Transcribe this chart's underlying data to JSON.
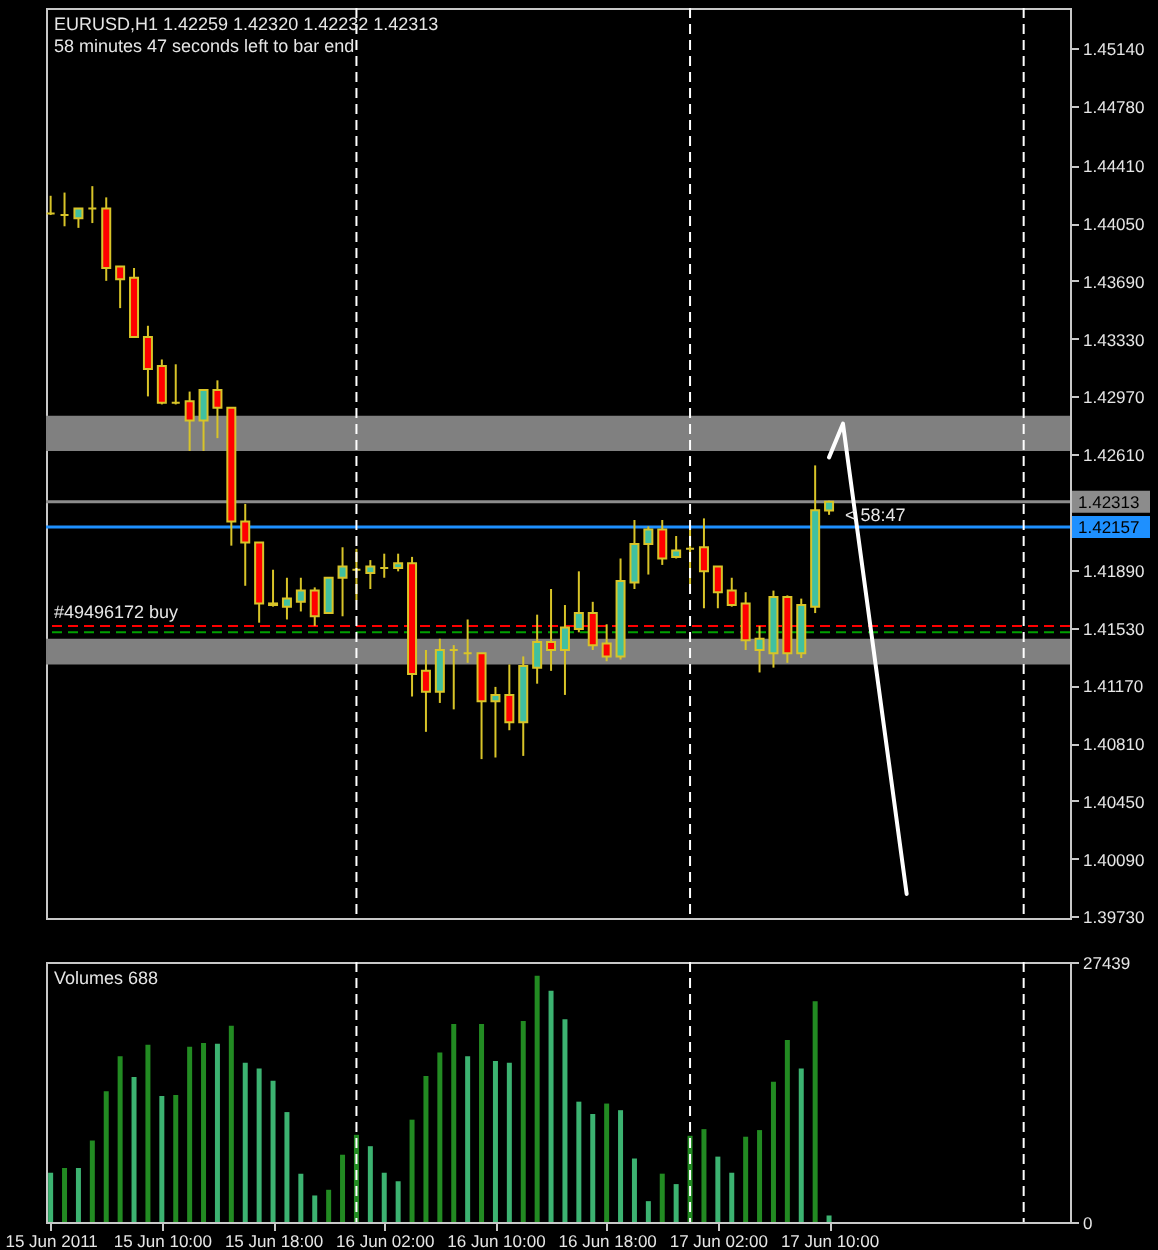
{
  "chart_data": [
    {
      "type": "candlestick",
      "title": "EURUSD,H1 1.42259 1.42320 1.42232 1.42313",
      "subtitle": "58 minutes 47 seconds left to bar end",
      "annotations": [
        {
          "text": "< 58:47",
          "x": "2011-06-17T11:00",
          "y": 1.4223
        }
      ],
      "x": [
        "2011-06-15T02:00",
        "2011-06-15T03:00",
        "2011-06-15T04:00",
        "2011-06-15T05:00",
        "2011-06-15T06:00",
        "2011-06-15T07:00",
        "2011-06-15T08:00",
        "2011-06-15T09:00",
        "2011-06-15T10:00",
        "2011-06-15T11:00",
        "2011-06-15T12:00",
        "2011-06-15T13:00",
        "2011-06-15T14:00",
        "2011-06-15T15:00",
        "2011-06-15T16:00",
        "2011-06-15T17:00",
        "2011-06-15T18:00",
        "2011-06-15T19:00",
        "2011-06-15T20:00",
        "2011-06-15T21:00",
        "2011-06-15T22:00",
        "2011-06-15T23:00",
        "2011-06-16T00:00",
        "2011-06-16T01:00",
        "2011-06-16T02:00",
        "2011-06-16T03:00",
        "2011-06-16T04:00",
        "2011-06-16T05:00",
        "2011-06-16T06:00",
        "2011-06-16T07:00",
        "2011-06-16T08:00",
        "2011-06-16T09:00",
        "2011-06-16T10:00",
        "2011-06-16T11:00",
        "2011-06-16T12:00",
        "2011-06-16T13:00",
        "2011-06-16T14:00",
        "2011-06-16T15:00",
        "2011-06-16T16:00",
        "2011-06-16T17:00",
        "2011-06-16T18:00",
        "2011-06-16T19:00",
        "2011-06-16T20:00",
        "2011-06-16T21:00",
        "2011-06-16T22:00",
        "2011-06-16T23:00",
        "2011-06-17T00:00",
        "2011-06-17T01:00",
        "2011-06-17T02:00",
        "2011-06-17T03:00",
        "2011-06-17T04:00",
        "2011-06-17T05:00",
        "2011-06-17T06:00",
        "2011-06-17T07:00",
        "2011-06-17T08:00",
        "2011-06-17T09:00",
        "2011-06-17T10:00"
      ],
      "ohlc": [
        [
          1.4411,
          1.4422,
          1.441,
          1.4411
        ],
        [
          1.441,
          1.4424,
          1.4403,
          1.441
        ],
        [
          1.4408,
          1.4414,
          1.4402,
          1.4414
        ],
        [
          1.4414,
          1.4428,
          1.4405,
          1.4414
        ],
        [
          1.4414,
          1.4421,
          1.4369,
          1.4377
        ],
        [
          1.4378,
          1.4378,
          1.4352,
          1.437
        ],
        [
          1.4371,
          1.4377,
          1.4334,
          1.4334
        ],
        [
          1.4334,
          1.4341,
          1.4297,
          1.4314
        ],
        [
          1.4316,
          1.432,
          1.4292,
          1.4293
        ],
        [
          1.4293,
          1.4317,
          1.4292,
          1.4293
        ],
        [
          1.4294,
          1.43,
          1.4263,
          1.4282
        ],
        [
          1.4282,
          1.4301,
          1.4263,
          1.4301
        ],
        [
          1.4301,
          1.4307,
          1.4271,
          1.429
        ],
        [
          1.429,
          1.429,
          1.4204,
          1.4219
        ],
        [
          1.4219,
          1.423,
          1.4179,
          1.4206
        ],
        [
          1.4206,
          1.4206,
          1.4156,
          1.4168
        ],
        [
          1.4168,
          1.4189,
          1.4166,
          1.4167
        ],
        [
          1.4166,
          1.4184,
          1.4158,
          1.4171
        ],
        [
          1.4169,
          1.4184,
          1.4163,
          1.4176
        ],
        [
          1.4176,
          1.4178,
          1.4154,
          1.416
        ],
        [
          1.4162,
          1.4184,
          1.4162,
          1.4184
        ],
        [
          1.4184,
          1.4203,
          1.416,
          1.4191
        ],
        [
          1.4189,
          1.4202,
          1.417,
          1.4189
        ],
        [
          1.4187,
          1.4195,
          1.4177,
          1.4191
        ],
        [
          1.419,
          1.4199,
          1.4184,
          1.419
        ],
        [
          1.419,
          1.4199,
          1.4188,
          1.4193
        ],
        [
          1.4193,
          1.4197,
          1.411,
          1.4124
        ],
        [
          1.4126,
          1.4139,
          1.4088,
          1.4113
        ],
        [
          1.4113,
          1.4146,
          1.4106,
          1.4139
        ],
        [
          1.4139,
          1.4142,
          1.4102,
          1.4139
        ],
        [
          1.4137,
          1.4158,
          1.4131,
          1.4137
        ],
        [
          1.4137,
          1.4137,
          1.4071,
          1.4107
        ],
        [
          1.4107,
          1.4116,
          1.4072,
          1.4111
        ],
        [
          1.4111,
          1.413,
          1.4089,
          1.4094
        ],
        [
          1.4094,
          1.4135,
          1.4073,
          1.4129
        ],
        [
          1.4128,
          1.4161,
          1.4118,
          1.4144
        ],
        [
          1.4144,
          1.4177,
          1.4126,
          1.4139
        ],
        [
          1.4139,
          1.4167,
          1.4111,
          1.4153
        ],
        [
          1.4152,
          1.4188,
          1.415,
          1.4162
        ],
        [
          1.4162,
          1.4169,
          1.4139,
          1.4142
        ],
        [
          1.4143,
          1.4155,
          1.4132,
          1.4135
        ],
        [
          1.4135,
          1.4196,
          1.4133,
          1.4182
        ],
        [
          1.4181,
          1.422,
          1.4177,
          1.4205
        ],
        [
          1.4205,
          1.4216,
          1.4186,
          1.4214
        ],
        [
          1.4214,
          1.422,
          1.4192,
          1.4196
        ],
        [
          1.4197,
          1.421,
          1.4196,
          1.4201
        ],
        [
          1.4202,
          1.4217,
          1.418,
          1.4202
        ],
        [
          1.4203,
          1.4221,
          1.4165,
          1.4188
        ],
        [
          1.4191,
          1.4191,
          1.4165,
          1.4175
        ],
        [
          1.4176,
          1.4184,
          1.4166,
          1.4167
        ],
        [
          1.4168,
          1.4175,
          1.4139,
          1.4145
        ],
        [
          1.4139,
          1.4154,
          1.4125,
          1.4146
        ],
        [
          1.4137,
          1.4176,
          1.4128,
          1.4172
        ],
        [
          1.4172,
          1.4173,
          1.4131,
          1.4137
        ],
        [
          1.4137,
          1.4171,
          1.4134,
          1.4167
        ],
        [
          1.4166,
          1.4254,
          1.4162,
          1.4226
        ],
        [
          1.42259,
          1.4232,
          1.42232,
          1.42313
        ]
      ],
      "color": "#d8c428",
      "colors": [
        "#d8c428",
        "#d8c428",
        "#40c0a0",
        "#d8c428",
        "#ff0000",
        "#ff0000",
        "#ff0000",
        "#ff0000",
        "#ff0000",
        "#d8c428",
        "#ff0000",
        "#40c0a0",
        "#ff0000",
        "#ff0000",
        "#ff0000",
        "#ff0000",
        "#ff0000",
        "#40c0a0",
        "#40c0a0",
        "#ff0000",
        "#40c0a0",
        "#40c0a0",
        "#d8c428",
        "#40c0a0",
        "#d8c428",
        "#40c0a0",
        "#ff0000",
        "#ff0000",
        "#40c0a0",
        "#d8c428",
        "#d8c428",
        "#ff0000",
        "#40c0a0",
        "#ff0000",
        "#40c0a0",
        "#40c0a0",
        "#ff0000",
        "#40c0a0",
        "#40c0a0",
        "#ff0000",
        "#ff0000",
        "#40c0a0",
        "#40c0a0",
        "#40c0a0",
        "#ff0000",
        "#40c0a0",
        "#d8c428",
        "#ff0000",
        "#ff0000",
        "#ff0000",
        "#ff0000",
        "#40c0a0",
        "#40c0a0",
        "#ff0000",
        "#40c0a0",
        "#40c0a0",
        "#40c0a0"
      ],
      "series": [
        {
          "type": "line",
          "color": "#ffffff",
          "x": [
            "2011-06-17T10:00",
            "2011-06-17T11:00",
            "2011-06-17T15:35"
          ],
          "values": [
            1.4259,
            1.428,
            1.3987
          ]
        }
      ],
      "xlim": [
        "2011-06-15T01:40",
        "2011-06-18T03:20"
      ],
      "ylim": [
        1.3972,
        1.4539
      ],
      "yticks": [
        {
          "value": 1.4514,
          "label": "1.45140"
        },
        {
          "value": 1.4478,
          "label": "1.44780"
        },
        {
          "value": 1.4441,
          "label": "1.44410"
        },
        {
          "value": 1.4405,
          "label": "1.44050"
        },
        {
          "value": 1.4369,
          "label": "1.43690"
        },
        {
          "value": 1.4333,
          "label": "1.43330"
        },
        {
          "value": 1.4297,
          "label": "1.42970"
        },
        {
          "value": 1.4261,
          "label": "1.42610"
        },
        {
          "value": 1.4189,
          "label": "1.41890"
        },
        {
          "value": 1.4153,
          "label": "1.41530"
        },
        {
          "value": 1.4117,
          "label": "1.41170"
        },
        {
          "value": 1.4081,
          "label": "1.40810"
        },
        {
          "value": 1.4045,
          "label": "1.40450"
        },
        {
          "value": 1.4009,
          "label": "1.40090"
        },
        {
          "value": 1.3973,
          "label": "1.39730"
        }
      ],
      "tick_labels": "y",
      "ref_lines": [
        {
          "axis": "y",
          "value": 1.42313,
          "label": "1.42313",
          "color": "#8c8c8c"
        },
        {
          "axis": "y",
          "value": 1.42157,
          "label": "1.42157",
          "color": "#1e90ff"
        },
        {
          "axis": "y",
          "value": 1.4154,
          "label": "#49496172 buy",
          "color": "#ff0000",
          "line_style": "dashed"
        },
        {
          "axis": "y",
          "value": 1.415,
          "color": "#00a000",
          "line_style": "dashed"
        },
        {
          "axis": "x",
          "value": "2011-06-16T00:00",
          "color": "#ffffff",
          "line_style": "dashed"
        },
        {
          "axis": "x",
          "value": "2011-06-17T00:00",
          "color": "#ffffff",
          "line_style": "dashed"
        },
        {
          "axis": "x",
          "value": "2011-06-18T00:00",
          "color": "#ffffff",
          "line_style": "dashed"
        }
      ],
      "bands": [
        {
          "axis": "y",
          "from": 1.4263,
          "to": 1.4285,
          "color": "#808080"
        },
        {
          "axis": "y",
          "from": 1.413,
          "to": 1.4146,
          "color": "#808080"
        }
      ]
    },
    {
      "type": "bar",
      "title": "Volumes 688",
      "x": [
        "2011-06-15T02:00",
        "2011-06-15T03:00",
        "2011-06-15T04:00",
        "2011-06-15T05:00",
        "2011-06-15T06:00",
        "2011-06-15T07:00",
        "2011-06-15T08:00",
        "2011-06-15T09:00",
        "2011-06-15T10:00",
        "2011-06-15T11:00",
        "2011-06-15T12:00",
        "2011-06-15T13:00",
        "2011-06-15T14:00",
        "2011-06-15T15:00",
        "2011-06-15T16:00",
        "2011-06-15T17:00",
        "2011-06-15T18:00",
        "2011-06-15T19:00",
        "2011-06-15T20:00",
        "2011-06-15T21:00",
        "2011-06-15T22:00",
        "2011-06-15T23:00",
        "2011-06-16T00:00",
        "2011-06-16T01:00",
        "2011-06-16T02:00",
        "2011-06-16T03:00",
        "2011-06-16T04:00",
        "2011-06-16T05:00",
        "2011-06-16T06:00",
        "2011-06-16T07:00",
        "2011-06-16T08:00",
        "2011-06-16T09:00",
        "2011-06-16T10:00",
        "2011-06-16T11:00",
        "2011-06-16T12:00",
        "2011-06-16T13:00",
        "2011-06-16T14:00",
        "2011-06-16T15:00",
        "2011-06-16T16:00",
        "2011-06-16T17:00",
        "2011-06-16T18:00",
        "2011-06-16T19:00",
        "2011-06-16T20:00",
        "2011-06-16T21:00",
        "2011-06-16T22:00",
        "2011-06-16T23:00",
        "2011-06-17T00:00",
        "2011-06-17T01:00",
        "2011-06-17T02:00",
        "2011-06-17T03:00",
        "2011-06-17T04:00",
        "2011-06-17T05:00",
        "2011-06-17T06:00",
        "2011-06-17T07:00",
        "2011-06-17T08:00",
        "2011-06-17T09:00",
        "2011-06-17T10:00"
      ],
      "values": [
        5200,
        5700,
        5700,
        8600,
        13800,
        17500,
        15300,
        18700,
        13300,
        13400,
        18500,
        18900,
        18800,
        20700,
        16800,
        16200,
        14900,
        11600,
        5100,
        2800,
        3400,
        7100,
        9200,
        8000,
        5200,
        4300,
        10800,
        15400,
        17900,
        20900,
        17500,
        20900,
        17000,
        16800,
        21200,
        26000,
        24400,
        21400,
        12700,
        11400,
        12500,
        11800,
        6700,
        2200,
        5100,
        4000,
        9100,
        9800,
        6900,
        5200,
        9000,
        9700,
        14800,
        19200,
        16200,
        23300,
        688
      ],
      "colors": [
        "#3cb371",
        "#228b22",
        "#3cb371",
        "#228b22",
        "#228b22",
        "#228b22",
        "#3cb371",
        "#228b22",
        "#3cb371",
        "#228b22",
        "#228b22",
        "#228b22",
        "#3cb371",
        "#228b22",
        "#3cb371",
        "#3cb371",
        "#3cb371",
        "#3cb371",
        "#3cb371",
        "#3cb371",
        "#228b22",
        "#228b22",
        "#228b22",
        "#3cb371",
        "#3cb371",
        "#3cb371",
        "#228b22",
        "#228b22",
        "#228b22",
        "#228b22",
        "#3cb371",
        "#228b22",
        "#3cb371",
        "#3cb371",
        "#228b22",
        "#228b22",
        "#3cb371",
        "#3cb371",
        "#3cb371",
        "#3cb371",
        "#228b22",
        "#3cb371",
        "#3cb371",
        "#3cb371",
        "#228b22",
        "#3cb371",
        "#228b22",
        "#228b22",
        "#3cb371",
        "#3cb371",
        "#228b22",
        "#228b22",
        "#228b22",
        "#228b22",
        "#3cb371",
        "#228b22",
        "#3cb371"
      ],
      "xlim": [
        "2011-06-15T01:40",
        "2011-06-18T03:20"
      ],
      "xticks": [
        {
          "value": "2011-06-15T02:00",
          "label": "15 Jun 2011"
        },
        {
          "value": "2011-06-15T10:00",
          "label": "15 Jun 10:00"
        },
        {
          "value": "2011-06-15T18:00",
          "label": "15 Jun 18:00"
        },
        {
          "value": "2011-06-16T02:00",
          "label": "16 Jun 02:00"
        },
        {
          "value": "2011-06-16T10:00",
          "label": "16 Jun 10:00"
        },
        {
          "value": "2011-06-16T18:00",
          "label": "16 Jun 18:00"
        },
        {
          "value": "2011-06-17T02:00",
          "label": "17 Jun 02:00"
        },
        {
          "value": "2011-06-17T10:00",
          "label": "17 Jun 10:00"
        }
      ],
      "ylim": [
        0,
        27439
      ],
      "yticks": [
        0,
        27439
      ],
      "ref_lines": [
        {
          "axis": "x",
          "value": "2011-06-16T00:00",
          "color": "#ffffff",
          "line_style": "dashed"
        },
        {
          "axis": "x",
          "value": "2011-06-17T00:00",
          "color": "#ffffff",
          "line_style": "dashed"
        },
        {
          "axis": "x",
          "value": "2011-06-18T00:00",
          "color": "#ffffff",
          "line_style": "dashed"
        }
      ]
    }
  ]
}
